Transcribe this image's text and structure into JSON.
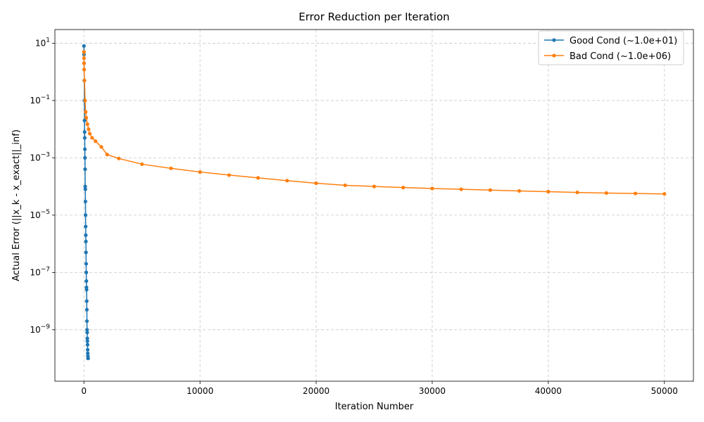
{
  "chart_data": {
    "type": "line",
    "title": "Error Reduction per Iteration",
    "xlabel": "Iteration Number",
    "ylabel": "Actual Error (||x_k - x_exact||_inf)",
    "xlim": [
      -2500,
      52500
    ],
    "ylim": [
      1.6e-11,
      30
    ],
    "yscale": "log",
    "grid": true,
    "legend_position": "top-right",
    "xticks": [
      {
        "value": 0,
        "label": "0"
      },
      {
        "value": 10000,
        "label": "10000"
      },
      {
        "value": 20000,
        "label": "20000"
      },
      {
        "value": 30000,
        "label": "30000"
      },
      {
        "value": 40000,
        "label": "40000"
      },
      {
        "value": 50000,
        "label": "50000"
      }
    ],
    "yticks": [
      {
        "value": 10.0,
        "base": "10",
        "exp": "1"
      },
      {
        "value": 0.1,
        "base": "10",
        "exp": "−1"
      },
      {
        "value": 0.001,
        "base": "10",
        "exp": "−3"
      },
      {
        "value": 1e-05,
        "base": "10",
        "exp": "−5"
      },
      {
        "value": 1e-07,
        "base": "10",
        "exp": "−7"
      },
      {
        "value": 1e-09,
        "base": "10",
        "exp": "−9"
      }
    ],
    "series": [
      {
        "name": "Good Cond (~1.0e+01)",
        "color": "#1f77b4",
        "x": [
          0,
          5,
          10,
          20,
          30,
          40,
          50,
          60,
          70,
          80,
          90,
          100,
          110,
          120,
          130,
          140,
          150,
          160,
          170,
          180,
          190,
          200,
          210,
          220,
          230,
          240,
          250,
          260,
          270,
          280,
          290,
          300,
          310,
          320,
          330,
          340,
          350,
          360
        ],
        "y": [
          8,
          4,
          2,
          1.2,
          0.5,
          0.1,
          0.02,
          0.008,
          0.005,
          0.002,
          0.001,
          0.0004,
          0.0001,
          8e-05,
          3e-05,
          1e-05,
          4e-06,
          2e-06,
          1.2e-06,
          5e-07,
          2e-07,
          1e-07,
          5e-08,
          3e-08,
          2.5e-08,
          1e-08,
          5e-09,
          2e-09,
          1e-09,
          8e-10,
          5e-10,
          4e-10,
          3e-10,
          2e-10,
          1.5e-10,
          1.2e-10,
          1e-10,
          1e-10
        ]
      },
      {
        "name": "Bad Cond (~1.0e+06)",
        "color": "#ff7f0e",
        "x": [
          0,
          5,
          10,
          20,
          50,
          100,
          150,
          200,
          300,
          400,
          500,
          700,
          1000,
          1500,
          2000,
          3000,
          5000,
          7500,
          10000,
          12500,
          15000,
          17500,
          20000,
          22500,
          25000,
          27500,
          30000,
          32500,
          35000,
          37500,
          40000,
          42500,
          45000,
          47500,
          50000
        ],
        "y": [
          5,
          3,
          2,
          1.2,
          0.5,
          0.1,
          0.04,
          0.025,
          0.015,
          0.01,
          0.007,
          0.005,
          0.0038,
          0.0024,
          0.0013,
          0.00095,
          0.0006,
          0.00043,
          0.00032,
          0.00025,
          0.0002,
          0.00016,
          0.00013,
          0.00011,
          0.0001,
          9.2e-05,
          8.5e-05,
          8e-05,
          7.5e-05,
          7e-05,
          6.6e-05,
          6.2e-05,
          5.9e-05,
          5.7e-05,
          5.5e-05
        ]
      }
    ]
  }
}
